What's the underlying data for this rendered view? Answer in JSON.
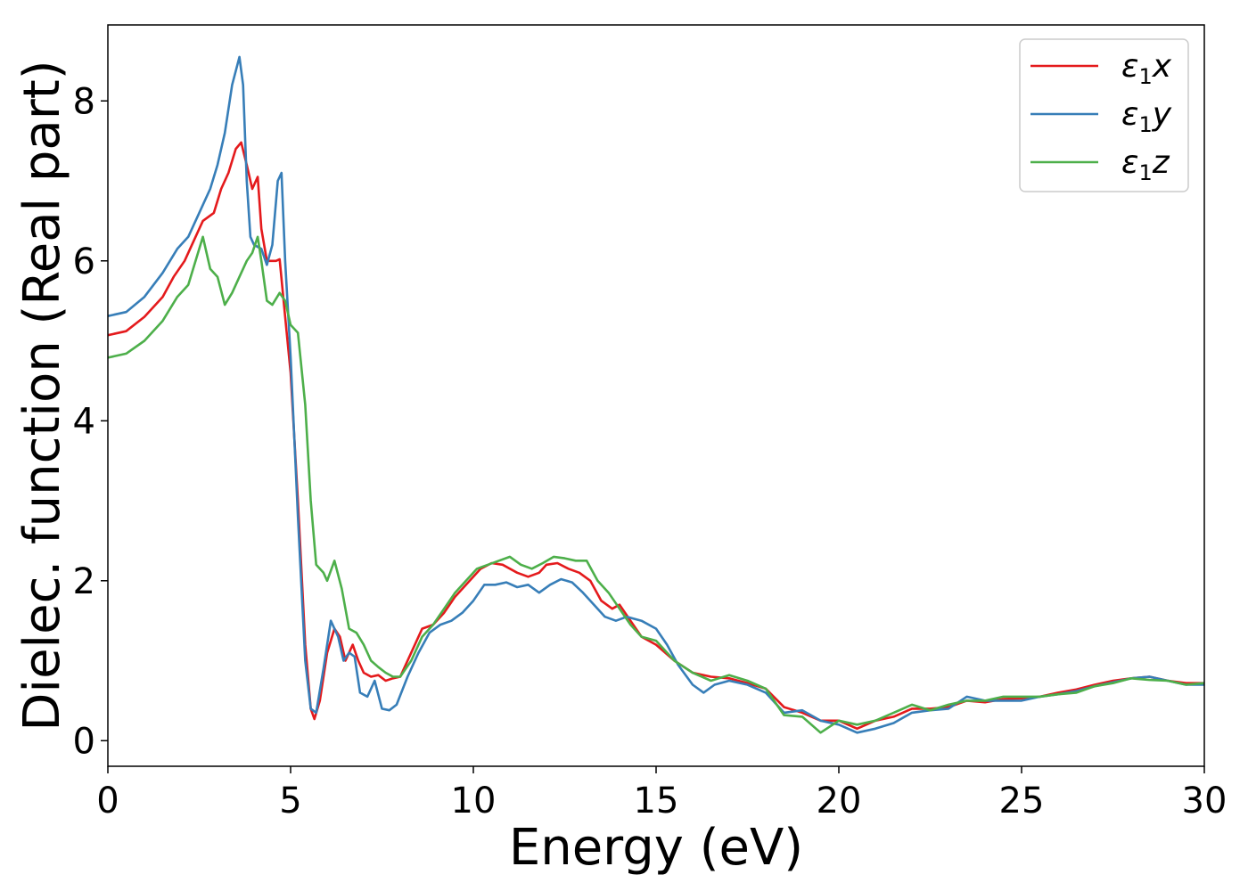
{
  "chart_data": {
    "type": "line",
    "xlabel": "Energy (eV)",
    "ylabel": "Dielec. function (Real part)",
    "xlim": [
      0,
      30
    ],
    "ylim": [
      -0.32,
      8.95
    ],
    "xticks": [
      0,
      5,
      10,
      15,
      20,
      25,
      30
    ],
    "yticks": [
      0,
      2,
      4,
      6,
      8
    ],
    "grid": false,
    "legend_position": "top-right",
    "series": [
      {
        "name": "ε1x",
        "legend": {
          "base": "ε",
          "sub": "1",
          "tail": "x"
        },
        "color": "#e41a1c",
        "points": [
          [
            0,
            5.07
          ],
          [
            0.5,
            5.12
          ],
          [
            1.0,
            5.3
          ],
          [
            1.5,
            5.55
          ],
          [
            1.8,
            5.8
          ],
          [
            2.1,
            6.0
          ],
          [
            2.4,
            6.3
          ],
          [
            2.6,
            6.5
          ],
          [
            2.9,
            6.6
          ],
          [
            3.1,
            6.9
          ],
          [
            3.3,
            7.1
          ],
          [
            3.5,
            7.4
          ],
          [
            3.65,
            7.48
          ],
          [
            3.8,
            7.2
          ],
          [
            3.95,
            6.9
          ],
          [
            4.1,
            7.05
          ],
          [
            4.2,
            6.4
          ],
          [
            4.35,
            6.0
          ],
          [
            4.6,
            6.0
          ],
          [
            4.7,
            6.02
          ],
          [
            4.85,
            5.3
          ],
          [
            5.0,
            4.6
          ],
          [
            5.2,
            3.0
          ],
          [
            5.4,
            1.2
          ],
          [
            5.55,
            0.4
          ],
          [
            5.65,
            0.27
          ],
          [
            5.8,
            0.5
          ],
          [
            6.0,
            1.1
          ],
          [
            6.2,
            1.4
          ],
          [
            6.35,
            1.3
          ],
          [
            6.5,
            1.0
          ],
          [
            6.7,
            1.2
          ],
          [
            6.85,
            1.0
          ],
          [
            7.0,
            0.85
          ],
          [
            7.2,
            0.8
          ],
          [
            7.4,
            0.82
          ],
          [
            7.6,
            0.75
          ],
          [
            7.8,
            0.78
          ],
          [
            8.0,
            0.8
          ],
          [
            8.3,
            1.1
          ],
          [
            8.6,
            1.4
          ],
          [
            8.9,
            1.45
          ],
          [
            9.2,
            1.6
          ],
          [
            9.5,
            1.8
          ],
          [
            9.8,
            1.95
          ],
          [
            10.2,
            2.15
          ],
          [
            10.5,
            2.22
          ],
          [
            10.8,
            2.2
          ],
          [
            11.2,
            2.1
          ],
          [
            11.5,
            2.05
          ],
          [
            11.8,
            2.1
          ],
          [
            12.0,
            2.2
          ],
          [
            12.3,
            2.22
          ],
          [
            12.6,
            2.15
          ],
          [
            12.9,
            2.1
          ],
          [
            13.2,
            2.0
          ],
          [
            13.5,
            1.75
          ],
          [
            13.8,
            1.65
          ],
          [
            14.0,
            1.7
          ],
          [
            14.3,
            1.5
          ],
          [
            14.6,
            1.3
          ],
          [
            15.0,
            1.2
          ],
          [
            15.5,
            1.0
          ],
          [
            16.0,
            0.85
          ],
          [
            16.5,
            0.8
          ],
          [
            17.0,
            0.78
          ],
          [
            17.5,
            0.72
          ],
          [
            18.0,
            0.65
          ],
          [
            18.5,
            0.42
          ],
          [
            19.0,
            0.35
          ],
          [
            19.5,
            0.25
          ],
          [
            20.0,
            0.25
          ],
          [
            20.5,
            0.15
          ],
          [
            21.0,
            0.25
          ],
          [
            21.5,
            0.3
          ],
          [
            22.0,
            0.4
          ],
          [
            22.5,
            0.4
          ],
          [
            23.0,
            0.42
          ],
          [
            23.5,
            0.5
          ],
          [
            24.0,
            0.48
          ],
          [
            24.5,
            0.52
          ],
          [
            25.0,
            0.53
          ],
          [
            25.5,
            0.55
          ],
          [
            26.0,
            0.6
          ],
          [
            26.5,
            0.64
          ],
          [
            27.0,
            0.7
          ],
          [
            27.5,
            0.75
          ],
          [
            28.0,
            0.78
          ],
          [
            28.5,
            0.8
          ],
          [
            29.0,
            0.75
          ],
          [
            29.5,
            0.72
          ],
          [
            30.0,
            0.72
          ]
        ]
      },
      {
        "name": "ε1y",
        "legend": {
          "base": "ε",
          "sub": "1",
          "tail": "y"
        },
        "color": "#377eb8",
        "points": [
          [
            0,
            5.31
          ],
          [
            0.5,
            5.36
          ],
          [
            1.0,
            5.55
          ],
          [
            1.5,
            5.85
          ],
          [
            1.9,
            6.15
          ],
          [
            2.2,
            6.3
          ],
          [
            2.5,
            6.6
          ],
          [
            2.8,
            6.9
          ],
          [
            3.0,
            7.2
          ],
          [
            3.2,
            7.6
          ],
          [
            3.4,
            8.2
          ],
          [
            3.6,
            8.55
          ],
          [
            3.7,
            8.2
          ],
          [
            3.8,
            7.0
          ],
          [
            3.9,
            6.3
          ],
          [
            4.0,
            6.2
          ],
          [
            4.2,
            6.15
          ],
          [
            4.35,
            5.95
          ],
          [
            4.5,
            6.2
          ],
          [
            4.65,
            7.0
          ],
          [
            4.75,
            7.1
          ],
          [
            4.85,
            6.0
          ],
          [
            5.0,
            4.8
          ],
          [
            5.2,
            2.8
          ],
          [
            5.4,
            1.0
          ],
          [
            5.55,
            0.4
          ],
          [
            5.7,
            0.35
          ],
          [
            5.9,
            0.9
          ],
          [
            6.1,
            1.5
          ],
          [
            6.3,
            1.3
          ],
          [
            6.45,
            1.0
          ],
          [
            6.6,
            1.1
          ],
          [
            6.75,
            1.05
          ],
          [
            6.9,
            0.6
          ],
          [
            7.1,
            0.55
          ],
          [
            7.3,
            0.75
          ],
          [
            7.5,
            0.4
          ],
          [
            7.7,
            0.38
          ],
          [
            7.9,
            0.45
          ],
          [
            8.2,
            0.8
          ],
          [
            8.5,
            1.1
          ],
          [
            8.8,
            1.35
          ],
          [
            9.1,
            1.45
          ],
          [
            9.4,
            1.5
          ],
          [
            9.7,
            1.6
          ],
          [
            10.0,
            1.75
          ],
          [
            10.3,
            1.95
          ],
          [
            10.6,
            1.95
          ],
          [
            10.9,
            1.98
          ],
          [
            11.2,
            1.92
          ],
          [
            11.5,
            1.95
          ],
          [
            11.8,
            1.85
          ],
          [
            12.1,
            1.95
          ],
          [
            12.4,
            2.02
          ],
          [
            12.7,
            1.98
          ],
          [
            13.0,
            1.85
          ],
          [
            13.3,
            1.7
          ],
          [
            13.6,
            1.55
          ],
          [
            13.9,
            1.5
          ],
          [
            14.2,
            1.55
          ],
          [
            14.6,
            1.5
          ],
          [
            15.0,
            1.4
          ],
          [
            15.3,
            1.2
          ],
          [
            15.6,
            0.95
          ],
          [
            16.0,
            0.7
          ],
          [
            16.3,
            0.6
          ],
          [
            16.6,
            0.7
          ],
          [
            17.0,
            0.75
          ],
          [
            17.5,
            0.7
          ],
          [
            18.0,
            0.6
          ],
          [
            18.5,
            0.35
          ],
          [
            19.0,
            0.38
          ],
          [
            19.5,
            0.25
          ],
          [
            20.0,
            0.2
          ],
          [
            20.5,
            0.1
          ],
          [
            21.0,
            0.15
          ],
          [
            21.5,
            0.22
          ],
          [
            22.0,
            0.35
          ],
          [
            22.5,
            0.38
          ],
          [
            23.0,
            0.4
          ],
          [
            23.5,
            0.55
          ],
          [
            24.0,
            0.5
          ],
          [
            24.5,
            0.5
          ],
          [
            25.0,
            0.5
          ],
          [
            25.5,
            0.55
          ],
          [
            26.0,
            0.58
          ],
          [
            26.5,
            0.62
          ],
          [
            27.0,
            0.68
          ],
          [
            27.5,
            0.73
          ],
          [
            28.0,
            0.78
          ],
          [
            28.5,
            0.8
          ],
          [
            29.0,
            0.75
          ],
          [
            29.5,
            0.7
          ],
          [
            30.0,
            0.7
          ]
        ]
      },
      {
        "name": "ε1z",
        "legend": {
          "base": "ε",
          "sub": "1",
          "tail": "z"
        },
        "color": "#4daf4a",
        "points": [
          [
            0,
            4.79
          ],
          [
            0.5,
            4.84
          ],
          [
            1.0,
            5.0
          ],
          [
            1.5,
            5.25
          ],
          [
            1.9,
            5.55
          ],
          [
            2.2,
            5.7
          ],
          [
            2.4,
            6.0
          ],
          [
            2.6,
            6.3
          ],
          [
            2.8,
            5.9
          ],
          [
            3.0,
            5.8
          ],
          [
            3.2,
            5.45
          ],
          [
            3.4,
            5.6
          ],
          [
            3.6,
            5.8
          ],
          [
            3.8,
            6.0
          ],
          [
            3.95,
            6.1
          ],
          [
            4.1,
            6.3
          ],
          [
            4.2,
            6.0
          ],
          [
            4.35,
            5.5
          ],
          [
            4.5,
            5.45
          ],
          [
            4.7,
            5.6
          ],
          [
            4.85,
            5.5
          ],
          [
            5.0,
            5.2
          ],
          [
            5.2,
            5.1
          ],
          [
            5.4,
            4.2
          ],
          [
            5.55,
            3.0
          ],
          [
            5.7,
            2.2
          ],
          [
            5.9,
            2.1
          ],
          [
            6.0,
            2.0
          ],
          [
            6.2,
            2.25
          ],
          [
            6.4,
            1.9
          ],
          [
            6.6,
            1.4
          ],
          [
            6.8,
            1.35
          ],
          [
            7.0,
            1.2
          ],
          [
            7.2,
            1.0
          ],
          [
            7.4,
            0.92
          ],
          [
            7.6,
            0.85
          ],
          [
            7.8,
            0.8
          ],
          [
            8.0,
            0.8
          ],
          [
            8.3,
            1.0
          ],
          [
            8.6,
            1.3
          ],
          [
            8.9,
            1.45
          ],
          [
            9.2,
            1.65
          ],
          [
            9.5,
            1.85
          ],
          [
            9.8,
            2.0
          ],
          [
            10.1,
            2.15
          ],
          [
            10.4,
            2.2
          ],
          [
            10.7,
            2.25
          ],
          [
            11.0,
            2.3
          ],
          [
            11.3,
            2.2
          ],
          [
            11.6,
            2.15
          ],
          [
            11.9,
            2.22
          ],
          [
            12.2,
            2.3
          ],
          [
            12.5,
            2.28
          ],
          [
            12.8,
            2.25
          ],
          [
            13.1,
            2.25
          ],
          [
            13.4,
            2.0
          ],
          [
            13.7,
            1.85
          ],
          [
            14.0,
            1.65
          ],
          [
            14.3,
            1.45
          ],
          [
            14.6,
            1.3
          ],
          [
            15.0,
            1.25
          ],
          [
            15.5,
            1.0
          ],
          [
            16.0,
            0.85
          ],
          [
            16.5,
            0.75
          ],
          [
            17.0,
            0.82
          ],
          [
            17.5,
            0.75
          ],
          [
            18.0,
            0.65
          ],
          [
            18.5,
            0.32
          ],
          [
            19.0,
            0.3
          ],
          [
            19.5,
            0.1
          ],
          [
            20.0,
            0.25
          ],
          [
            20.5,
            0.2
          ],
          [
            21.0,
            0.25
          ],
          [
            21.5,
            0.35
          ],
          [
            22.0,
            0.45
          ],
          [
            22.5,
            0.38
          ],
          [
            23.0,
            0.45
          ],
          [
            23.5,
            0.5
          ],
          [
            24.0,
            0.5
          ],
          [
            24.5,
            0.55
          ],
          [
            25.0,
            0.55
          ],
          [
            25.5,
            0.55
          ],
          [
            26.0,
            0.58
          ],
          [
            26.5,
            0.6
          ],
          [
            27.0,
            0.68
          ],
          [
            27.5,
            0.72
          ],
          [
            28.0,
            0.78
          ],
          [
            28.5,
            0.76
          ],
          [
            29.0,
            0.75
          ],
          [
            29.5,
            0.7
          ],
          [
            30.0,
            0.72
          ]
        ]
      }
    ]
  }
}
